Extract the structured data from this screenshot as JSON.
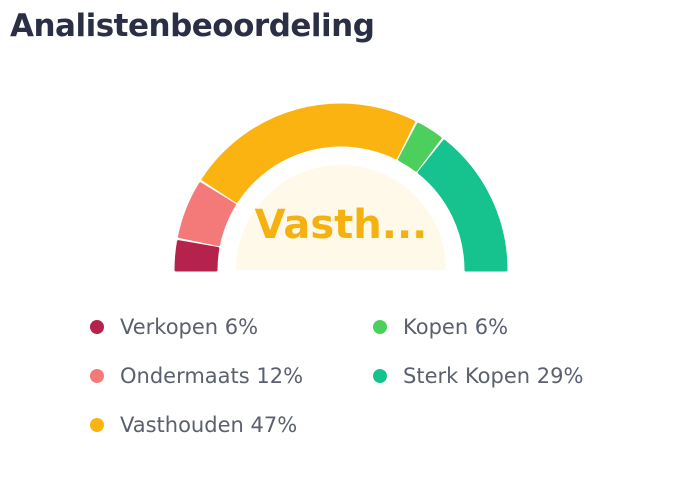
{
  "title": "Analistenbeoordeling",
  "chart_data": {
    "type": "gauge",
    "center_label": "Vasth...",
    "center_color": "#f5b10f",
    "series": [
      {
        "name": "Verkopen",
        "value": 6,
        "label": "Verkopen 6%",
        "color": "#b5224c"
      },
      {
        "name": "Ondermaats",
        "value": 12,
        "label": "Ondermaats 12%",
        "color": "#f47a7a"
      },
      {
        "name": "Vasthouden",
        "value": 47,
        "label": "Vasthouden 47%",
        "color": "#fbb311"
      },
      {
        "name": "Kopen",
        "value": 6,
        "label": "Kopen 6%",
        "color": "#4ccf5d"
      },
      {
        "name": "Sterk Kopen",
        "value": 29,
        "label": "Sterk Kopen 29%",
        "color": "#16c28d"
      }
    ]
  }
}
